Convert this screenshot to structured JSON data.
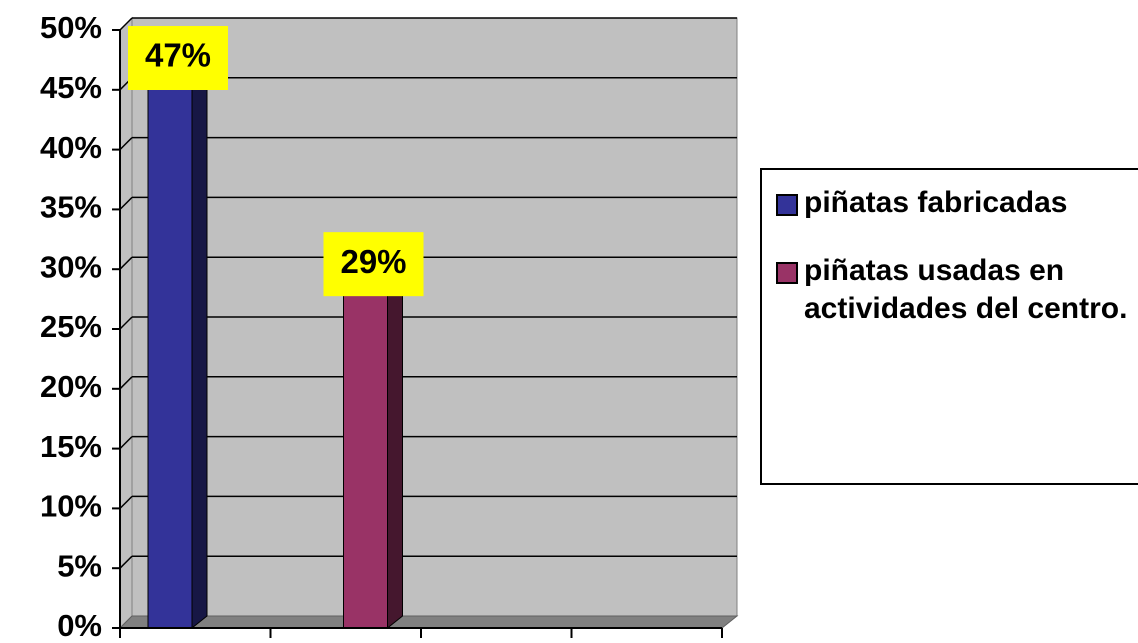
{
  "chart_data": {
    "type": "bar",
    "categories": [
      null,
      null,
      null,
      null
    ],
    "series": [
      {
        "name": "piñatas fabricadas",
        "color": "#333399",
        "values": [
          47,
          null,
          null,
          null
        ],
        "value_labels": [
          "47%",
          null,
          null,
          null
        ]
      },
      {
        "name": "piñatas usadas en actividades del centro.",
        "color": "#993366",
        "values": [
          null,
          29,
          null,
          null
        ],
        "value_labels": [
          null,
          "29%",
          null,
          null
        ]
      }
    ],
    "ylim": [
      0,
      50
    ],
    "yticks": [
      {
        "value": 0,
        "label": "0%"
      },
      {
        "value": 5,
        "label": "5%"
      },
      {
        "value": 10,
        "label": "10%"
      },
      {
        "value": 15,
        "label": "15%"
      },
      {
        "value": 20,
        "label": "20%"
      },
      {
        "value": 25,
        "label": "25%"
      },
      {
        "value": 30,
        "label": "30%"
      },
      {
        "value": 35,
        "label": "35%"
      },
      {
        "value": 40,
        "label": "40%"
      },
      {
        "value": 45,
        "label": "45%"
      },
      {
        "value": 50,
        "label": "50%"
      }
    ],
    "grid": true,
    "legend": "right",
    "data_label_background": "#ffff00"
  }
}
